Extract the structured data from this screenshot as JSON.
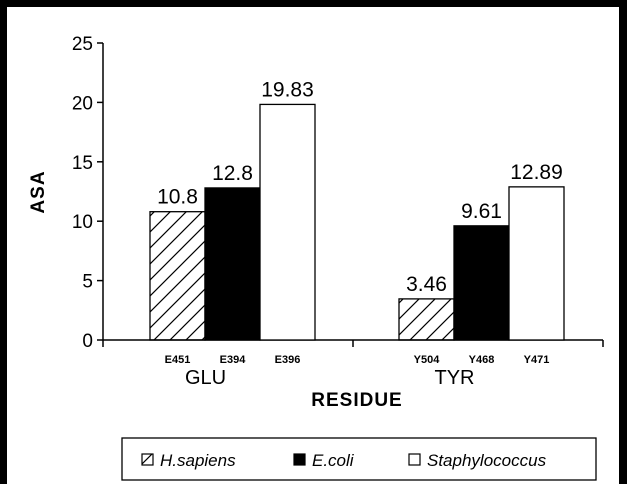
{
  "chart_data": {
    "type": "bar",
    "title": "",
    "xlabel": "RESIDUE",
    "ylabel": "ASA",
    "ylim": [
      0,
      25
    ],
    "yticks": [
      0,
      5,
      10,
      15,
      20,
      25
    ],
    "grid": false,
    "legend_position": "bottom",
    "groups": [
      {
        "name": "GLU",
        "bars": [
          {
            "series": "H.sapiens",
            "residue": "E451",
            "value": 10.8,
            "label": "10.8"
          },
          {
            "series": "E.coli",
            "residue": "E394",
            "value": 12.8,
            "label": "12.8"
          },
          {
            "series": "Staphylococcus",
            "residue": "E396",
            "value": 19.83,
            "label": "19.83"
          }
        ]
      },
      {
        "name": "TYR",
        "bars": [
          {
            "series": "H.sapiens",
            "residue": "Y504",
            "value": 3.46,
            "label": "3.46"
          },
          {
            "series": "E.coli",
            "residue": "Y468",
            "value": 9.61,
            "label": "9.61"
          },
          {
            "series": "Staphylococcus",
            "residue": "Y471",
            "value": 12.89,
            "label": "12.89"
          }
        ]
      }
    ],
    "series": [
      {
        "name": "H.sapiens",
        "fill": "hatched",
        "color": "#000000"
      },
      {
        "name": "E.coli",
        "fill": "solid",
        "color": "#000000"
      },
      {
        "name": "Staphylococcus",
        "fill": "white",
        "color": "#ffffff"
      }
    ]
  }
}
